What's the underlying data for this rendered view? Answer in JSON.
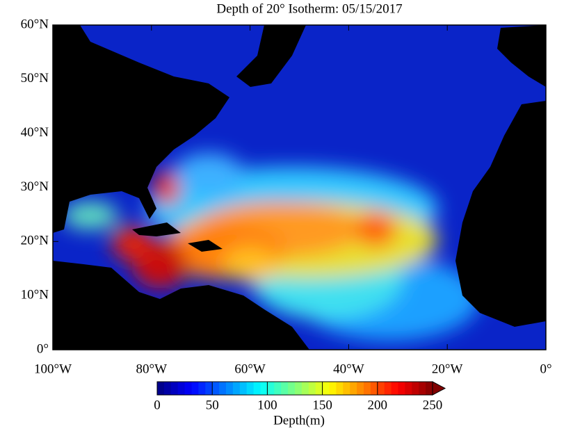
{
  "title": "Depth of 20° Isotherm: 05/15/2017",
  "map": {
    "xlim": [
      -100,
      0
    ],
    "ylim": [
      0,
      60
    ],
    "xticks": [
      {
        "value": -100,
        "label": "100°W"
      },
      {
        "value": -80,
        "label": "80°W"
      },
      {
        "value": -60,
        "label": "60°W"
      },
      {
        "value": -40,
        "label": "40°W"
      },
      {
        "value": -20,
        "label": "20°W"
      },
      {
        "value": 0,
        "label": "0°"
      }
    ],
    "yticks": [
      {
        "value": 0,
        "label": "0°"
      },
      {
        "value": 10,
        "label": "10°N"
      },
      {
        "value": 20,
        "label": "20°N"
      },
      {
        "value": 30,
        "label": "30°N"
      },
      {
        "value": 40,
        "label": "40°N"
      },
      {
        "value": 50,
        "label": "50°N"
      },
      {
        "value": 60,
        "label": "60°N"
      }
    ]
  },
  "colorbar": {
    "lim": [
      0,
      250
    ],
    "ticks": [
      0,
      50,
      100,
      150,
      200,
      250
    ],
    "label": "Depth(m)"
  }
}
